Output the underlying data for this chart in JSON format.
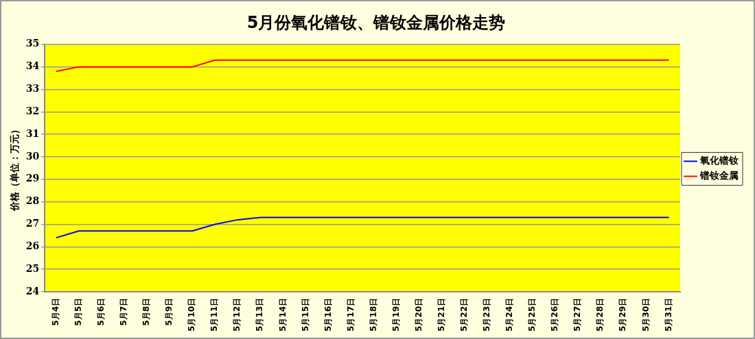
{
  "chart_data": {
    "type": "line",
    "title": "5月份氧化镨钕、镨钕金属价格走势",
    "ylabel": "价格（单位：万元）",
    "categories": [
      "5月4日",
      "5月5日",
      "5月6日",
      "5月7日",
      "5月8日",
      "5月9日",
      "5月10日",
      "5月11日",
      "5月12日",
      "5月13日",
      "5月14日",
      "5月15日",
      "5月16日",
      "5月17日",
      "5月18日",
      "5月19日",
      "5月20日",
      "5月21日",
      "5月22日",
      "5月23日",
      "5月24日",
      "5月25日",
      "5月26日",
      "5月27日",
      "5月28日",
      "5月29日",
      "5月30日",
      "5月31日"
    ],
    "series": [
      {
        "name": "氧化镨钕",
        "color": "#0000ff",
        "values": [
          26.4,
          26.7,
          26.7,
          26.7,
          26.7,
          26.7,
          26.7,
          27.0,
          27.2,
          27.3,
          27.3,
          27.3,
          27.3,
          27.3,
          27.3,
          27.3,
          27.3,
          27.3,
          27.3,
          27.3,
          27.3,
          27.3,
          27.3,
          27.3,
          27.3,
          27.3,
          27.3,
          27.3
        ]
      },
      {
        "name": "镨钕金属",
        "color": "#ff0000",
        "values": [
          33.8,
          34.0,
          34.0,
          34.0,
          34.0,
          34.0,
          34.0,
          34.3,
          34.3,
          34.3,
          34.3,
          34.3,
          34.3,
          34.3,
          34.3,
          34.3,
          34.3,
          34.3,
          34.3,
          34.3,
          34.3,
          34.3,
          34.3,
          34.3,
          34.3,
          34.3,
          34.3,
          34.3
        ]
      }
    ],
    "ylim": [
      24,
      35
    ],
    "yticks": [
      24,
      25,
      26,
      27,
      28,
      29,
      30,
      31,
      32,
      33,
      34,
      35
    ],
    "grid": "y",
    "legend": "right",
    "marker": "none",
    "line_style": "solid"
  }
}
